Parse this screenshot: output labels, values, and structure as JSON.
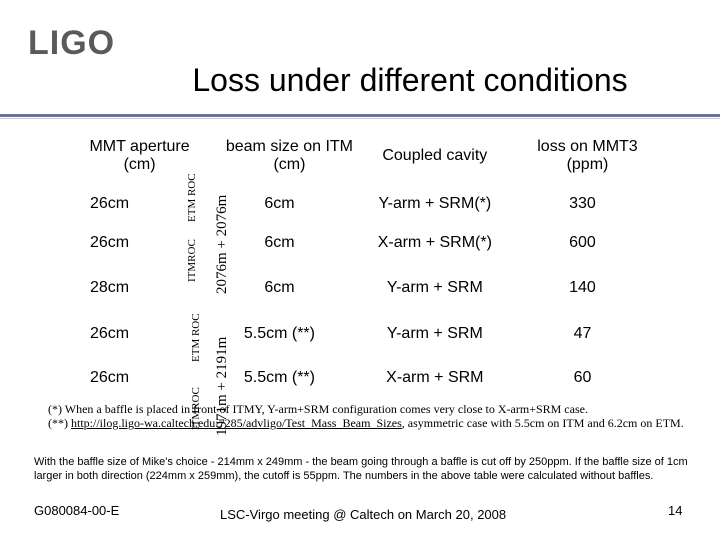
{
  "logo": {
    "text": "LIGO"
  },
  "title": "Loss under different conditions",
  "table": {
    "headers": [
      "MMT aperture (cm)",
      "beam size on ITM (cm)",
      "Coupled cavity",
      "loss on MMT3 (ppm)"
    ],
    "rows": [
      [
        "26cm",
        "6cm",
        "Y-arm + SRM(*)",
        "330"
      ],
      [
        "26cm",
        "6cm",
        "X-arm + SRM(*)",
        "600"
      ],
      [
        "28cm",
        "6cm",
        "Y-arm + SRM",
        "140"
      ],
      [
        "26cm",
        "5.5cm (**)",
        "Y-arm + SRM",
        "47"
      ],
      [
        "26cm",
        "5.5cm (**)",
        "X-arm + SRM",
        "60"
      ]
    ]
  },
  "overlays": {
    "etm_roc": "ETM ROC",
    "itm_roc": "ITMROC",
    "roc_top": "2076m + 2076m",
    "roc_bottom": "1971m + 2191m"
  },
  "footnotes": {
    "note1": "(*) When a baffle is placed in front of ITMY, Y-arm+SRM configuration comes very close to X-arm+SRM case.",
    "note2_prefix": "(**) ",
    "note2_link": "http://ilog.ligo-wa.caltech.edu:7285/advligo/Test_Mass_Beam_Sizes",
    "note2_suffix": ", asymmetric case with 5.5cm on ITM and 6.2cm on ETM.",
    "baffle": "With the baffle size of Mike's choice - 214mm x 249mm - the beam going through a baffle is cut off by 250ppm. If the baffle size of 1cm larger in both direction (224mm x 259mm), the cutoff is 55ppm. The numbers in the above table were calculated without baffles."
  },
  "footer": {
    "doc_id": "G080084-00-E",
    "meeting": "LSC-Virgo meeting @ Caltech on March 20, 2008",
    "page": "14"
  },
  "colors": {
    "rule": "#6d6fa6",
    "logo": "#5a5a5a"
  }
}
